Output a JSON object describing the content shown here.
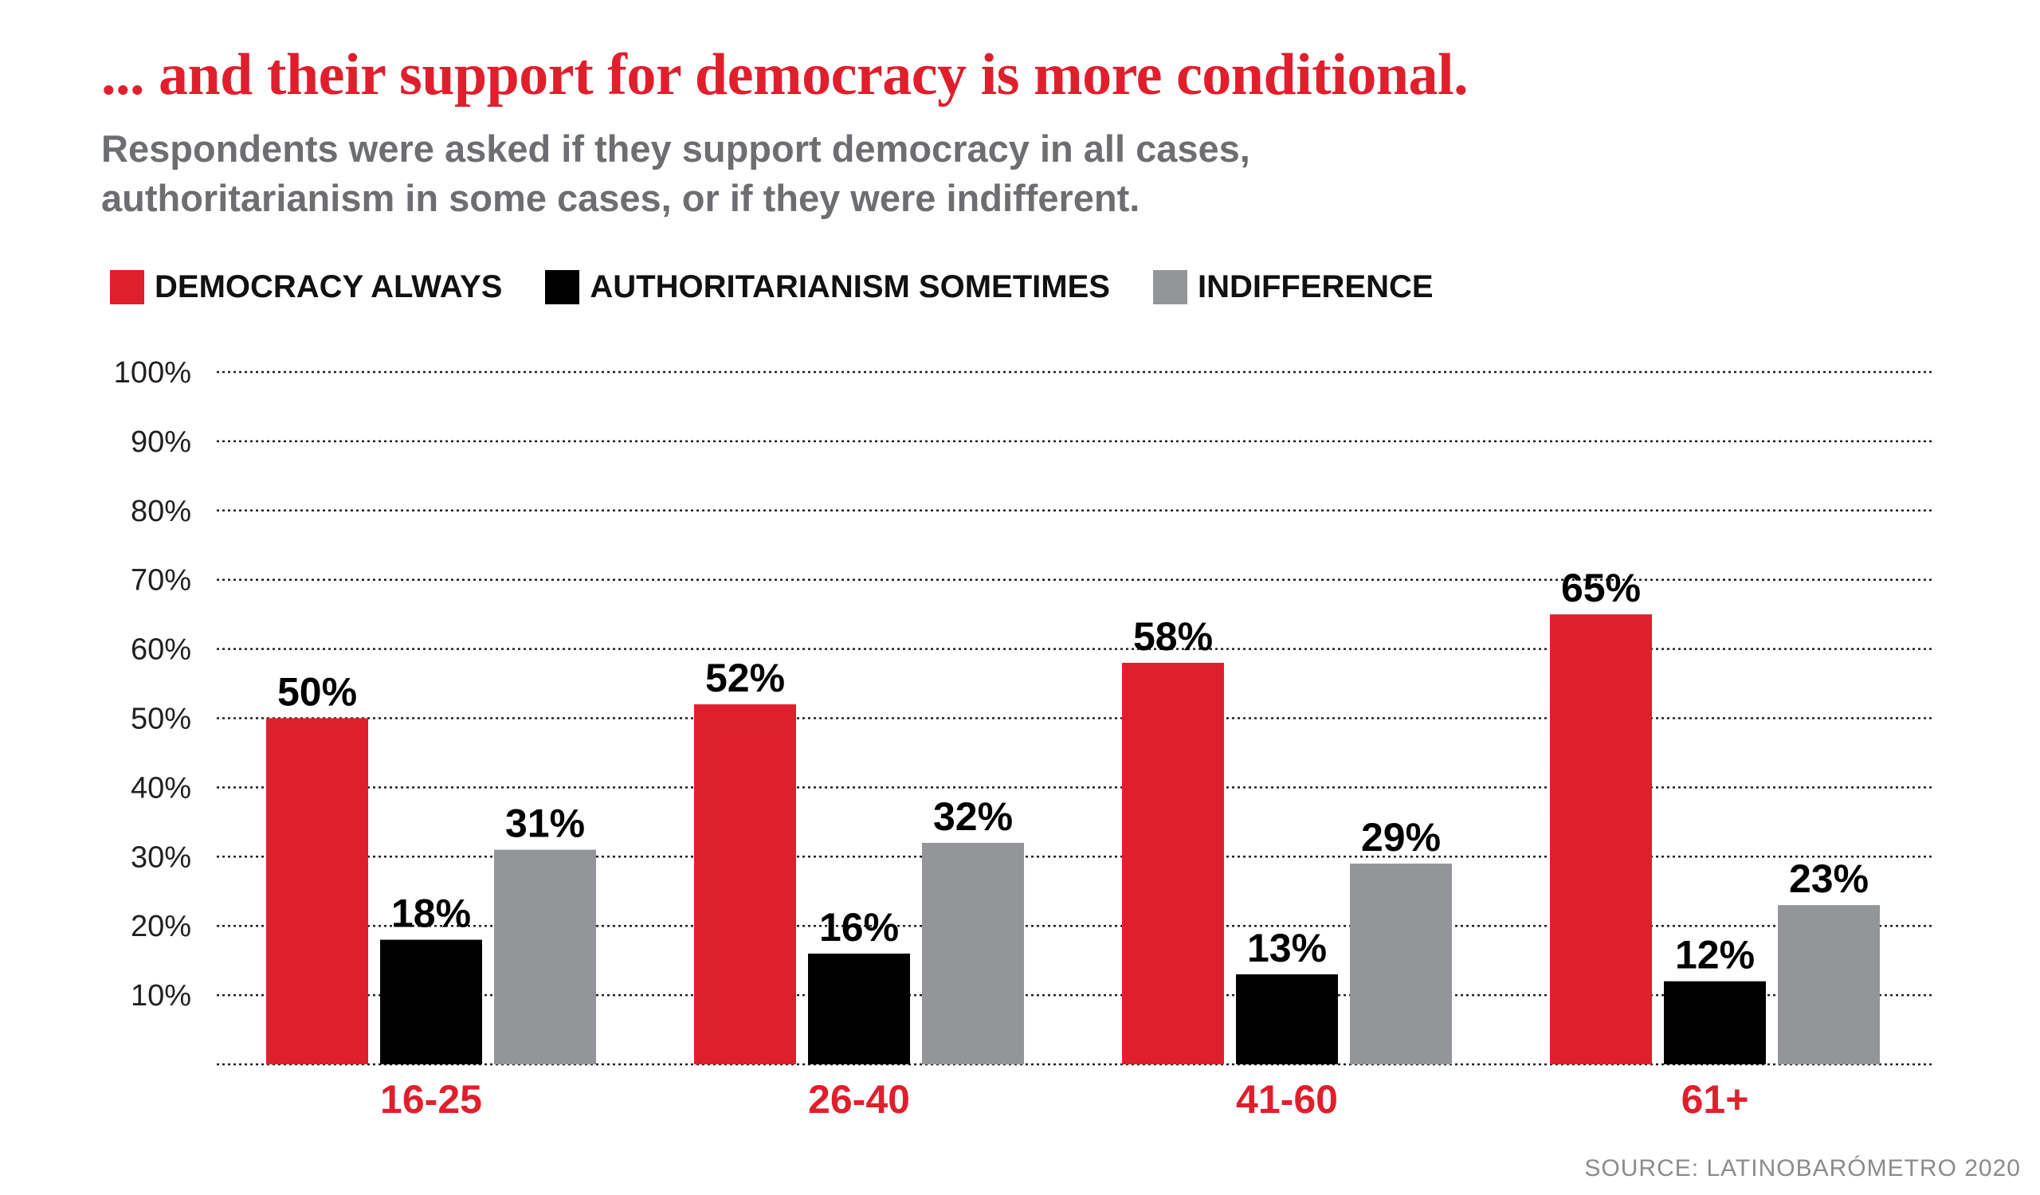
{
  "title": "... and their support for democracy is more conditional.",
  "subtitle_line1": "Respondents were asked if they support democracy in all cases,",
  "subtitle_line2": "authoritarianism in some cases, or if they were indifferent.",
  "source": "SOURCE: LATINOBARÓMETRO 2020",
  "colors": {
    "accent": "#e01f2d",
    "democracy": "#e01f2d",
    "authoritarianism": "#000000",
    "indifference": "#939598",
    "gridline": "#231f20"
  },
  "chart_data": {
    "type": "bar",
    "categories": [
      "16-25",
      "26-40",
      "41-60",
      "61+"
    ],
    "series": [
      {
        "name": "DEMOCRACY ALWAYS",
        "color": "#e01f2d",
        "values": [
          50,
          52,
          58,
          65
        ],
        "labels": [
          "50%",
          "52%",
          "58%",
          "65%"
        ]
      },
      {
        "name": "AUTHORITARIANISM SOMETIMES",
        "color": "#000000",
        "values": [
          18,
          16,
          13,
          12
        ],
        "labels": [
          "18%",
          "16%",
          "13%",
          "12%"
        ]
      },
      {
        "name": "INDIFFERENCE",
        "color": "#939598",
        "values": [
          31,
          32,
          29,
          23
        ],
        "labels": [
          "31%",
          "32%",
          "29%",
          "23%"
        ]
      }
    ],
    "yticks": [
      "10%",
      "20%",
      "30%",
      "40%",
      "50%",
      "60%",
      "70%",
      "80%",
      "90%",
      "100%"
    ],
    "ylim": [
      0,
      100
    ],
    "grid": true,
    "legend_position": "top-left"
  }
}
